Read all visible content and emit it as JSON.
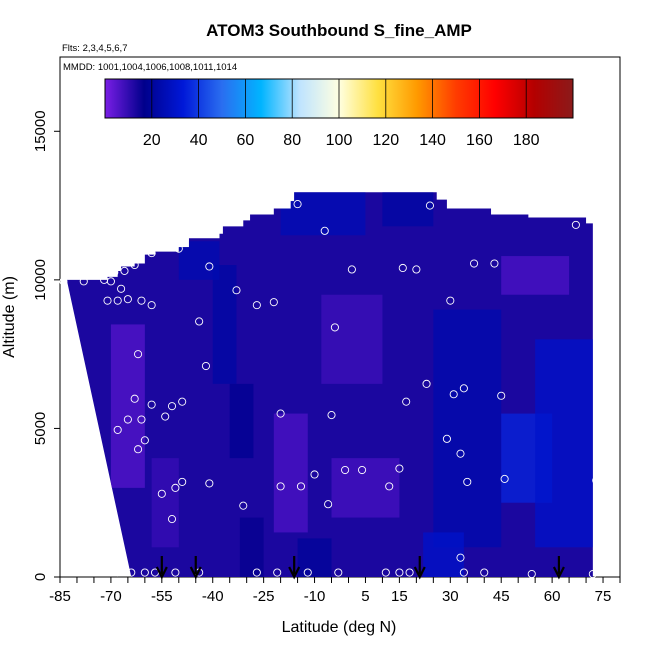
{
  "chart_data": {
    "type": "heatmap",
    "title": "ATOM3 Southbound S_fine_AMP",
    "flights_text": "Flts: 2,3,4,5,6,7",
    "mmdd_text": "MMDD: 1001,1004,1006,1008,1011,1014",
    "xlabel": "Latitude (deg N)",
    "ylabel": "Altitude (m)",
    "xlim": [
      -85,
      80
    ],
    "ylim": [
      0,
      17500
    ],
    "x_tick_labels": [
      "-85",
      "-70",
      "-55",
      "-40",
      "-25",
      "-10",
      "5",
      "15",
      "30",
      "45",
      "60",
      "75"
    ],
    "x_tick_values": [
      -85,
      -70,
      -55,
      -40,
      -25,
      -10,
      5,
      15,
      30,
      45,
      60,
      75
    ],
    "y_tick_labels": [
      "0",
      "5000",
      "10000",
      "15000"
    ],
    "y_tick_values": [
      0,
      5000,
      10000,
      15000
    ],
    "colorbar": {
      "range": [
        0,
        200
      ],
      "tick_labels": [
        "20",
        "40",
        "60",
        "80",
        "100",
        "120",
        "140",
        "160",
        "180"
      ],
      "tick_values": [
        20,
        40,
        60,
        80,
        100,
        120,
        140,
        160,
        180
      ],
      "colors": [
        "#7a1ee6",
        "#00008b",
        "#0018d8",
        "#2a6ef0",
        "#00b4ff",
        "#bfe4ff",
        "#ffffe0",
        "#ffe040",
        "#ff9a00",
        "#ff3c00",
        "#ff0000",
        "#b40000",
        "#8b1a1a"
      ]
    },
    "profile_top": [
      [
        -83,
        10000
      ],
      [
        -71,
        10100
      ],
      [
        -68,
        10300
      ],
      [
        -67,
        10450
      ],
      [
        -63,
        10550
      ],
      [
        -60,
        10850
      ],
      [
        -57,
        10950
      ],
      [
        -50,
        11100
      ],
      [
        -47,
        11400
      ],
      [
        -38,
        11550
      ],
      [
        -37,
        11800
      ],
      [
        -31,
        12000
      ],
      [
        -29,
        12200
      ],
      [
        -22,
        12400
      ],
      [
        -17,
        12650
      ],
      [
        -16,
        12950
      ],
      [
        12,
        12950
      ],
      [
        22,
        12950
      ],
      [
        26,
        12700
      ],
      [
        29,
        12400
      ],
      [
        42,
        12200
      ],
      [
        53,
        12100
      ],
      [
        66,
        12100
      ],
      [
        70,
        11900
      ],
      [
        72,
        11700
      ]
    ],
    "profile_bottom": [
      [
        -64,
        0
      ],
      [
        72,
        0
      ]
    ],
    "profile_left_bottom": [
      -64,
      0
    ],
    "profile_left_top": [
      -83,
      10000
    ],
    "cells": [
      {
        "x": [
          -70,
          -60
        ],
        "y": [
          3000,
          8500
        ],
        "v": 5
      },
      {
        "x": [
          -58,
          -50
        ],
        "y": [
          1000,
          4000
        ],
        "v": 9
      },
      {
        "x": [
          -40,
          -33
        ],
        "y": [
          6500,
          10500
        ],
        "v": 22
      },
      {
        "x": [
          -35,
          -28
        ],
        "y": [
          4000,
          6500
        ],
        "v": 18
      },
      {
        "x": [
          -32,
          -25
        ],
        "y": [
          0,
          2000
        ],
        "v": 16
      },
      {
        "x": [
          -22,
          -12
        ],
        "y": [
          1500,
          5500
        ],
        "v": 6
      },
      {
        "x": [
          -15,
          -5
        ],
        "y": [
          0,
          1300
        ],
        "v": 20
      },
      {
        "x": [
          -8,
          10
        ],
        "y": [
          6500,
          9500
        ],
        "v": 8
      },
      {
        "x": [
          -5,
          15
        ],
        "y": [
          2000,
          4000
        ],
        "v": 7
      },
      {
        "x": [
          25,
          45
        ],
        "y": [
          1000,
          9000
        ],
        "v": 24
      },
      {
        "x": [
          45,
          60
        ],
        "y": [
          2500,
          5500
        ],
        "v": 36
      },
      {
        "x": [
          55,
          72
        ],
        "y": [
          1000,
          8000
        ],
        "v": 30
      },
      {
        "x": [
          22,
          34
        ],
        "y": [
          0,
          1500
        ],
        "v": 30
      },
      {
        "x": [
          45,
          65
        ],
        "y": [
          9500,
          10800
        ],
        "v": 6
      },
      {
        "x": [
          -20,
          5
        ],
        "y": [
          11500,
          12950
        ],
        "v": 26
      },
      {
        "x": [
          -50,
          -38
        ],
        "y": [
          10000,
          11300
        ],
        "v": 25
      },
      {
        "x": [
          10,
          25
        ],
        "y": [
          11800,
          12950
        ],
        "v": 22
      }
    ],
    "background_value": 13,
    "points": [
      [
        -84,
        9950
      ],
      [
        -78,
        9950
      ],
      [
        -72,
        10000
      ],
      [
        -70,
        9950
      ],
      [
        -69,
        10250
      ],
      [
        -67,
        9700
      ],
      [
        -66,
        10300
      ],
      [
        -63,
        10500
      ],
      [
        -58,
        10900
      ],
      [
        -50,
        11050
      ],
      [
        -71,
        9300
      ],
      [
        -68,
        9300
      ],
      [
        -65,
        9350
      ],
      [
        -61,
        9300
      ],
      [
        -58,
        9150
      ],
      [
        -41,
        10450
      ],
      [
        -33,
        9650
      ],
      [
        -27,
        9150
      ],
      [
        -22,
        9250
      ],
      [
        -15,
        12550
      ],
      [
        -7,
        11650
      ],
      [
        -4,
        8400
      ],
      [
        1,
        10350
      ],
      [
        16,
        10400
      ],
      [
        20,
        10350
      ],
      [
        24,
        12500
      ],
      [
        30,
        9300
      ],
      [
        37,
        10550
      ],
      [
        43,
        10550
      ],
      [
        67,
        11850
      ],
      [
        -44,
        8600
      ],
      [
        -62,
        7500
      ],
      [
        -63,
        6000
      ],
      [
        -65,
        5300
      ],
      [
        -58,
        5800
      ],
      [
        -61,
        5300
      ],
      [
        -62,
        4300
      ],
      [
        -60,
        4600
      ],
      [
        -68,
        4950
      ],
      [
        -54,
        5400
      ],
      [
        -52,
        5750
      ],
      [
        -49,
        5900
      ],
      [
        -42,
        7100
      ],
      [
        -20,
        5500
      ],
      [
        -5,
        5450
      ],
      [
        17,
        5900
      ],
      [
        23,
        6500
      ],
      [
        31,
        6150
      ],
      [
        34,
        6350
      ],
      [
        45,
        6100
      ],
      [
        29,
        4650
      ],
      [
        33,
        4150
      ],
      [
        35,
        3200
      ],
      [
        46,
        3300
      ],
      [
        73,
        3250
      ],
      [
        -14,
        3050
      ],
      [
        -10,
        3450
      ],
      [
        -1,
        3600
      ],
      [
        4,
        3600
      ],
      [
        15,
        3650
      ],
      [
        -51,
        3000
      ],
      [
        -49,
        3200
      ],
      [
        -41,
        3150
      ],
      [
        -31,
        2400
      ],
      [
        -20,
        3050
      ],
      [
        -6,
        2450
      ],
      [
        12,
        3050
      ],
      [
        -55,
        2800
      ],
      [
        -52,
        1950
      ],
      [
        -68,
        150
      ],
      [
        -64,
        150
      ],
      [
        -60,
        150
      ],
      [
        -57,
        150
      ],
      [
        -51,
        150
      ],
      [
        -44,
        150
      ],
      [
        -27,
        150
      ],
      [
        -21,
        150
      ],
      [
        -12,
        150
      ],
      [
        -3,
        150
      ],
      [
        11,
        150
      ],
      [
        15,
        150
      ],
      [
        18,
        150
      ],
      [
        33,
        650
      ],
      [
        34,
        150
      ],
      [
        40,
        150
      ],
      [
        54,
        100
      ],
      [
        72,
        100
      ]
    ],
    "arrows_x": [
      -55,
      -45,
      -16,
      21,
      62
    ]
  }
}
